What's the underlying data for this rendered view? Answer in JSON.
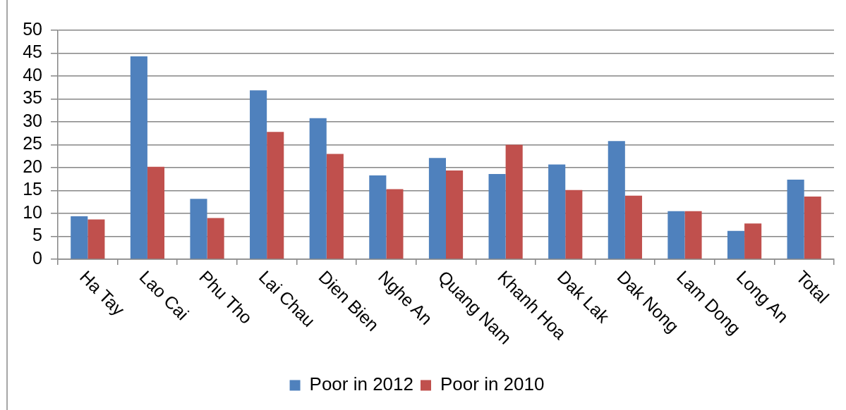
{
  "chart_data": {
    "type": "bar",
    "categories": [
      "Ha Tay",
      "Lao Cai",
      "Phu Tho",
      "Lai Chau",
      "Dien Bien",
      "Nghe An",
      "Quang Nam",
      "Khanh Hoa",
      "Dak Lak",
      "Dak Nong",
      "Lam Dong",
      "Long An",
      "Total"
    ],
    "series": [
      {
        "name": "Poor in 2012",
        "color": "#4f81bd",
        "values": [
          9.4,
          44.3,
          13.2,
          36.9,
          30.8,
          18.3,
          22.1,
          18.6,
          20.7,
          25.8,
          10.5,
          6.2,
          17.4
        ]
      },
      {
        "name": "Poor in 2010",
        "color": "#c0504d",
        "values": [
          8.7,
          20.2,
          9.0,
          27.8,
          23.0,
          15.3,
          19.4,
          25.0,
          15.1,
          13.9,
          10.5,
          7.8,
          13.7
        ]
      }
    ],
    "ylim": [
      0,
      50
    ],
    "yticks": [
      0,
      5,
      10,
      15,
      20,
      25,
      30,
      35,
      40,
      45,
      50
    ],
    "grid": "y",
    "legend": "bottom"
  }
}
